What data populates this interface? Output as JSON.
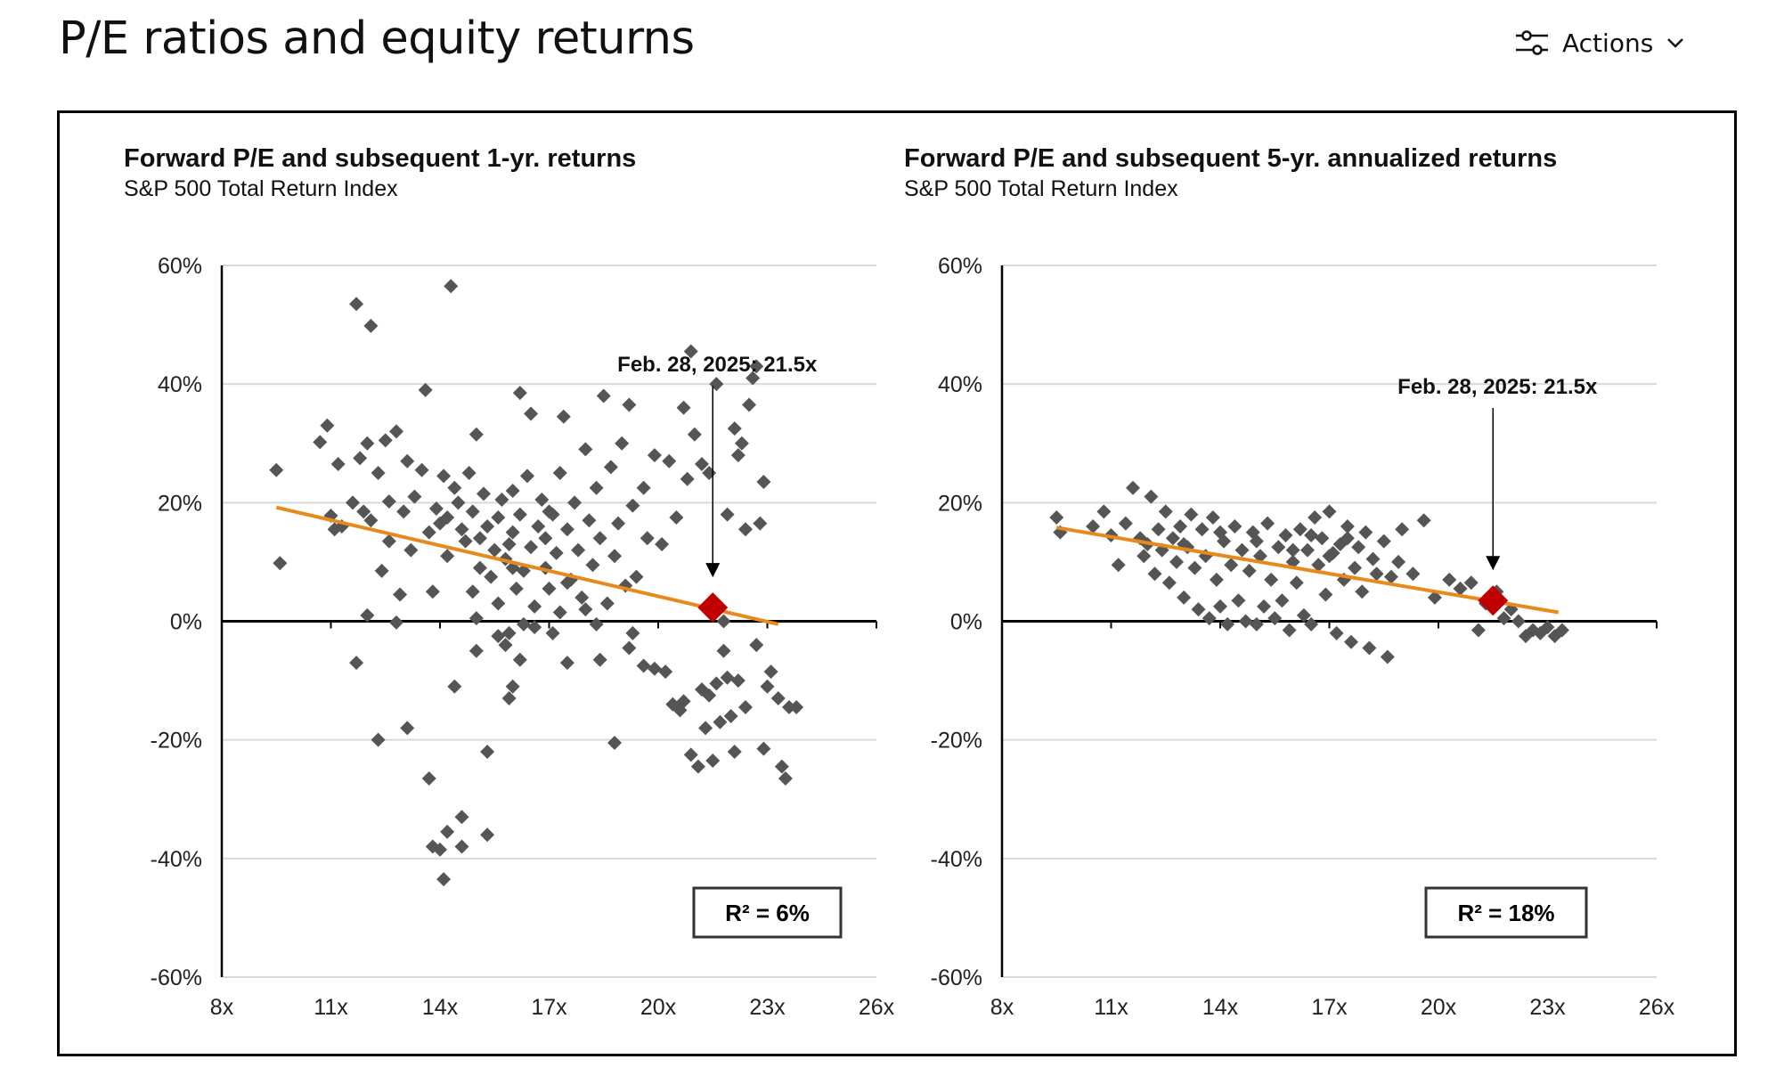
{
  "header": {
    "title": "P/E ratios and equity returns",
    "actions_label": "Actions"
  },
  "colors": {
    "point": "#555555",
    "trend": "#E8891C",
    "highlight": "#C00000",
    "grid": "#d9d9d9"
  },
  "chart_data": [
    {
      "type": "scatter",
      "title": "Forward P/E and subsequent 1-yr. returns",
      "subtitle": "S&P 500 Total Return Index",
      "xlim": [
        8,
        26
      ],
      "ylim": [
        -60,
        60
      ],
      "xticks": [
        8,
        11,
        14,
        17,
        20,
        23,
        26
      ],
      "xtick_labels": [
        "8x",
        "11x",
        "14x",
        "17x",
        "20x",
        "23x",
        "26x"
      ],
      "yticks": [
        60,
        40,
        20,
        0,
        -20,
        -40,
        -60
      ],
      "ytick_labels": [
        "60%",
        "40%",
        "20%",
        "0%",
        "-20%",
        "-40%",
        "-60%"
      ],
      "trendline": {
        "x": [
          9.5,
          23.3
        ],
        "y": [
          19.2,
          -0.5
        ]
      },
      "highlight": {
        "x": 21.5,
        "y": 2.3,
        "label": "Feb. 28, 2025:  21.5x"
      },
      "r2_label": "R² = 6%",
      "points": [
        [
          9.5,
          25.5
        ],
        [
          9.6,
          9.8
        ],
        [
          11.0,
          17.8
        ],
        [
          10.9,
          33.0
        ],
        [
          10.7,
          30.2
        ],
        [
          11.2,
          26.5
        ],
        [
          11.1,
          15.5
        ],
        [
          11.3,
          16.0
        ],
        [
          11.6,
          20.0
        ],
        [
          11.7,
          53.5
        ],
        [
          11.8,
          27.5
        ],
        [
          11.9,
          18.5
        ],
        [
          12.0,
          30.0
        ],
        [
          12.0,
          1.0
        ],
        [
          12.1,
          49.8
        ],
        [
          12.1,
          17.0
        ],
        [
          12.3,
          25.0
        ],
        [
          12.4,
          8.5
        ],
        [
          12.5,
          30.5
        ],
        [
          12.6,
          13.5
        ],
        [
          12.6,
          20.2
        ],
        [
          12.8,
          32.0
        ],
        [
          12.9,
          4.5
        ],
        [
          12.8,
          -0.2
        ],
        [
          13.0,
          18.5
        ],
        [
          13.1,
          27.0
        ],
        [
          13.2,
          12.0
        ],
        [
          13.3,
          21.0
        ],
        [
          13.5,
          25.5
        ],
        [
          13.6,
          39.0
        ],
        [
          13.7,
          15.0
        ],
        [
          13.8,
          5.0
        ],
        [
          13.9,
          19.0
        ],
        [
          14.0,
          16.5
        ],
        [
          14.1,
          24.5
        ],
        [
          14.2,
          17.5
        ],
        [
          14.2,
          11.0
        ],
        [
          14.3,
          56.5
        ],
        [
          14.4,
          22.5
        ],
        [
          14.5,
          20.0
        ],
        [
          14.6,
          15.5
        ],
        [
          14.7,
          13.5
        ],
        [
          14.8,
          25.0
        ],
        [
          14.9,
          18.5
        ],
        [
          14.9,
          5.0
        ],
        [
          15.0,
          31.5
        ],
        [
          15.1,
          14.0
        ],
        [
          15.1,
          9.0
        ],
        [
          15.2,
          21.5
        ],
        [
          15.3,
          16.0
        ],
        [
          15.4,
          7.5
        ],
        [
          15.5,
          12.0
        ],
        [
          15.6,
          17.5
        ],
        [
          15.6,
          3.0
        ],
        [
          15.7,
          20.5
        ],
        [
          15.8,
          10.5
        ],
        [
          15.9,
          13.0
        ],
        [
          15.9,
          -2.0
        ],
        [
          16.0,
          22.0
        ],
        [
          16.0,
          15.0
        ],
        [
          16.1,
          5.5
        ],
        [
          16.2,
          38.5
        ],
        [
          16.2,
          18.0
        ],
        [
          16.3,
          8.5
        ],
        [
          16.3,
          -0.5
        ],
        [
          16.4,
          24.5
        ],
        [
          16.5,
          12.5
        ],
        [
          16.5,
          35.0
        ],
        [
          16.6,
          2.5
        ],
        [
          16.7,
          16.0
        ],
        [
          16.8,
          20.5
        ],
        [
          16.9,
          9.0
        ],
        [
          16.9,
          14.0
        ],
        [
          17.0,
          5.5
        ],
        [
          17.1,
          18.0
        ],
        [
          17.2,
          11.5
        ],
        [
          17.3,
          25.0
        ],
        [
          17.3,
          1.5
        ],
        [
          17.4,
          34.5
        ],
        [
          17.5,
          15.5
        ],
        [
          17.6,
          7.0
        ],
        [
          17.7,
          20.0
        ],
        [
          17.8,
          12.0
        ],
        [
          17.9,
          4.0
        ],
        [
          18.0,
          29.0
        ],
        [
          18.1,
          17.0
        ],
        [
          18.2,
          9.5
        ],
        [
          18.3,
          22.5
        ],
        [
          18.3,
          -0.5
        ],
        [
          18.4,
          14.0
        ],
        [
          18.5,
          38.0
        ],
        [
          18.6,
          3.0
        ],
        [
          18.7,
          26.0
        ],
        [
          18.8,
          11.0
        ],
        [
          18.9,
          16.5
        ],
        [
          19.0,
          30.0
        ],
        [
          19.1,
          6.0
        ],
        [
          19.2,
          36.5
        ],
        [
          19.3,
          19.5
        ],
        [
          19.4,
          7.5
        ],
        [
          19.6,
          22.5
        ],
        [
          19.7,
          14.0
        ],
        [
          19.9,
          28.0
        ],
        [
          20.1,
          13.0
        ],
        [
          20.3,
          27.0
        ],
        [
          20.5,
          17.5
        ],
        [
          20.7,
          36.0
        ],
        [
          20.8,
          24.0
        ],
        [
          20.9,
          45.5
        ],
        [
          21.0,
          31.5
        ],
        [
          21.2,
          26.5
        ],
        [
          21.4,
          25.0
        ],
        [
          21.6,
          40.0
        ],
        [
          21.8,
          0.0
        ],
        [
          21.9,
          18.0
        ],
        [
          22.1,
          32.5
        ],
        [
          22.2,
          28.0
        ],
        [
          22.3,
          30.0
        ],
        [
          22.4,
          15.5
        ],
        [
          22.5,
          36.5
        ],
        [
          22.6,
          41.0
        ],
        [
          22.7,
          43.0
        ],
        [
          22.8,
          16.5
        ],
        [
          22.9,
          23.5
        ],
        [
          11.7,
          -7.0
        ],
        [
          12.3,
          -20.0
        ],
        [
          13.1,
          -18.0
        ],
        [
          13.7,
          -26.5
        ],
        [
          13.8,
          -38.0
        ],
        [
          14.0,
          -38.5
        ],
        [
          14.2,
          -35.5
        ],
        [
          14.4,
          -11.0
        ],
        [
          14.1,
          -43.5
        ],
        [
          14.6,
          -33.0
        ],
        [
          14.6,
          -38.0
        ],
        [
          15.0,
          -5.0
        ],
        [
          15.3,
          -22.0
        ],
        [
          15.3,
          -36.0
        ],
        [
          15.6,
          -2.5
        ],
        [
          15.8,
          -4.0
        ],
        [
          15.9,
          -13.0
        ],
        [
          16.0,
          -11.0
        ],
        [
          16.2,
          -6.5
        ],
        [
          16.6,
          -1.0
        ],
        [
          17.1,
          -2.0
        ],
        [
          17.5,
          -7.0
        ],
        [
          18.4,
          -6.5
        ],
        [
          18.8,
          -20.5
        ],
        [
          19.2,
          -4.5
        ],
        [
          19.3,
          -2.0
        ],
        [
          19.6,
          -7.5
        ],
        [
          19.9,
          -8.0
        ],
        [
          20.2,
          -8.5
        ],
        [
          20.4,
          -14.0
        ],
        [
          20.6,
          -15.0
        ],
        [
          20.7,
          -13.5
        ],
        [
          20.9,
          -22.5
        ],
        [
          21.1,
          -24.5
        ],
        [
          21.2,
          -11.5
        ],
        [
          21.3,
          -18.0
        ],
        [
          21.4,
          -12.5
        ],
        [
          21.5,
          -23.5
        ],
        [
          21.6,
          -10.5
        ],
        [
          21.7,
          -17.0
        ],
        [
          21.8,
          -5.0
        ],
        [
          21.9,
          -9.5
        ],
        [
          22.0,
          -16.0
        ],
        [
          22.1,
          -22.0
        ],
        [
          22.2,
          -10.0
        ],
        [
          22.4,
          -14.5
        ],
        [
          22.7,
          -4.0
        ],
        [
          22.9,
          -21.5
        ],
        [
          23.0,
          -11.0
        ],
        [
          23.1,
          -8.5
        ],
        [
          23.3,
          -13.0
        ],
        [
          23.4,
          -24.5
        ],
        [
          23.5,
          -26.5
        ],
        [
          23.6,
          -14.5
        ],
        [
          23.8,
          -14.5
        ],
        [
          16.0,
          9.0
        ],
        [
          17.0,
          18.5
        ],
        [
          18.0,
          2.0
        ],
        [
          15.0,
          0.5
        ],
        [
          17.5,
          6.5
        ]
      ]
    },
    {
      "type": "scatter",
      "title": "Forward P/E and subsequent 5-yr. annualized returns",
      "subtitle": "S&P 500 Total Return Index",
      "xlim": [
        8,
        26
      ],
      "ylim": [
        -60,
        60
      ],
      "xticks": [
        8,
        11,
        14,
        17,
        20,
        23,
        26
      ],
      "xtick_labels": [
        "8x",
        "11x",
        "14x",
        "17x",
        "20x",
        "23x",
        "26x"
      ],
      "yticks": [
        60,
        40,
        20,
        0,
        -20,
        -40,
        -60
      ],
      "ytick_labels": [
        "60%",
        "40%",
        "20%",
        "0%",
        "-20%",
        "-40%",
        "-60%"
      ],
      "trendline": {
        "x": [
          9.5,
          23.3
        ],
        "y": [
          15.8,
          1.5
        ]
      },
      "highlight": {
        "x": 21.5,
        "y": 3.5,
        "label": "Feb. 28, 2025:  21.5x"
      },
      "r2_label": "R² = 18%",
      "points": [
        [
          9.5,
          17.5
        ],
        [
          9.6,
          15.0
        ],
        [
          10.5,
          16.0
        ],
        [
          10.8,
          18.5
        ],
        [
          11.0,
          14.5
        ],
        [
          11.2,
          9.5
        ],
        [
          11.4,
          16.5
        ],
        [
          11.6,
          22.5
        ],
        [
          11.8,
          14.0
        ],
        [
          11.9,
          11.0
        ],
        [
          12.1,
          21.0
        ],
        [
          12.2,
          8.0
        ],
        [
          12.3,
          15.5
        ],
        [
          12.4,
          12.0
        ],
        [
          12.5,
          18.5
        ],
        [
          12.6,
          6.5
        ],
        [
          12.7,
          14.0
        ],
        [
          12.8,
          10.0
        ],
        [
          12.9,
          16.0
        ],
        [
          13.0,
          4.0
        ],
        [
          13.1,
          12.5
        ],
        [
          13.2,
          18.0
        ],
        [
          13.3,
          9.0
        ],
        [
          13.4,
          2.0
        ],
        [
          13.5,
          15.5
        ],
        [
          13.6,
          11.0
        ],
        [
          13.7,
          0.5
        ],
        [
          13.8,
          17.5
        ],
        [
          13.9,
          7.0
        ],
        [
          14.0,
          2.5
        ],
        [
          14.1,
          13.5
        ],
        [
          14.2,
          -0.5
        ],
        [
          14.3,
          9.5
        ],
        [
          14.4,
          16.0
        ],
        [
          14.5,
          3.5
        ],
        [
          14.6,
          12.0
        ],
        [
          14.7,
          0.0
        ],
        [
          14.8,
          8.5
        ],
        [
          14.9,
          15.0
        ],
        [
          15.0,
          -0.5
        ],
        [
          15.1,
          11.0
        ],
        [
          15.2,
          2.5
        ],
        [
          15.3,
          16.5
        ],
        [
          15.4,
          7.0
        ],
        [
          15.5,
          0.5
        ],
        [
          15.6,
          12.5
        ],
        [
          15.7,
          3.5
        ],
        [
          15.8,
          14.5
        ],
        [
          15.9,
          -1.5
        ],
        [
          16.0,
          10.0
        ],
        [
          16.1,
          6.5
        ],
        [
          16.2,
          15.5
        ],
        [
          16.3,
          1.0
        ],
        [
          16.4,
          12.0
        ],
        [
          16.5,
          -0.5
        ],
        [
          16.6,
          17.5
        ],
        [
          16.7,
          9.5
        ],
        [
          16.8,
          14.0
        ],
        [
          16.9,
          4.5
        ],
        [
          17.0,
          18.5
        ],
        [
          17.1,
          11.5
        ],
        [
          17.2,
          -2.0
        ],
        [
          17.3,
          13.0
        ],
        [
          17.4,
          7.0
        ],
        [
          17.5,
          16.0
        ],
        [
          17.6,
          -3.5
        ],
        [
          17.7,
          9.0
        ],
        [
          17.8,
          12.5
        ],
        [
          17.9,
          5.0
        ],
        [
          18.0,
          15.0
        ],
        [
          18.1,
          -4.5
        ],
        [
          18.2,
          10.5
        ],
        [
          18.3,
          8.0
        ],
        [
          18.5,
          13.5
        ],
        [
          18.6,
          -6.0
        ],
        [
          18.7,
          7.5
        ],
        [
          18.9,
          10.0
        ],
        [
          19.0,
          15.5
        ],
        [
          19.3,
          8.0
        ],
        [
          19.6,
          17.0
        ],
        [
          19.9,
          4.0
        ],
        [
          20.3,
          7.0
        ],
        [
          20.6,
          5.5
        ],
        [
          20.9,
          6.5
        ],
        [
          21.1,
          -1.5
        ],
        [
          21.3,
          3.0
        ],
        [
          21.6,
          5.0
        ],
        [
          21.8,
          0.5
        ],
        [
          22.0,
          2.0
        ],
        [
          22.2,
          0.0
        ],
        [
          22.4,
          -2.5
        ],
        [
          22.6,
          -1.5
        ],
        [
          22.8,
          -2.0
        ],
        [
          23.0,
          -1.0
        ],
        [
          23.2,
          -2.5
        ],
        [
          23.4,
          -1.5
        ],
        [
          12.0,
          13.0
        ],
        [
          13.0,
          13.0
        ],
        [
          14.0,
          15.0
        ],
        [
          15.0,
          13.5
        ],
        [
          16.0,
          12.0
        ],
        [
          17.0,
          11.0
        ],
        [
          17.5,
          14.0
        ],
        [
          16.5,
          14.5
        ]
      ]
    }
  ]
}
